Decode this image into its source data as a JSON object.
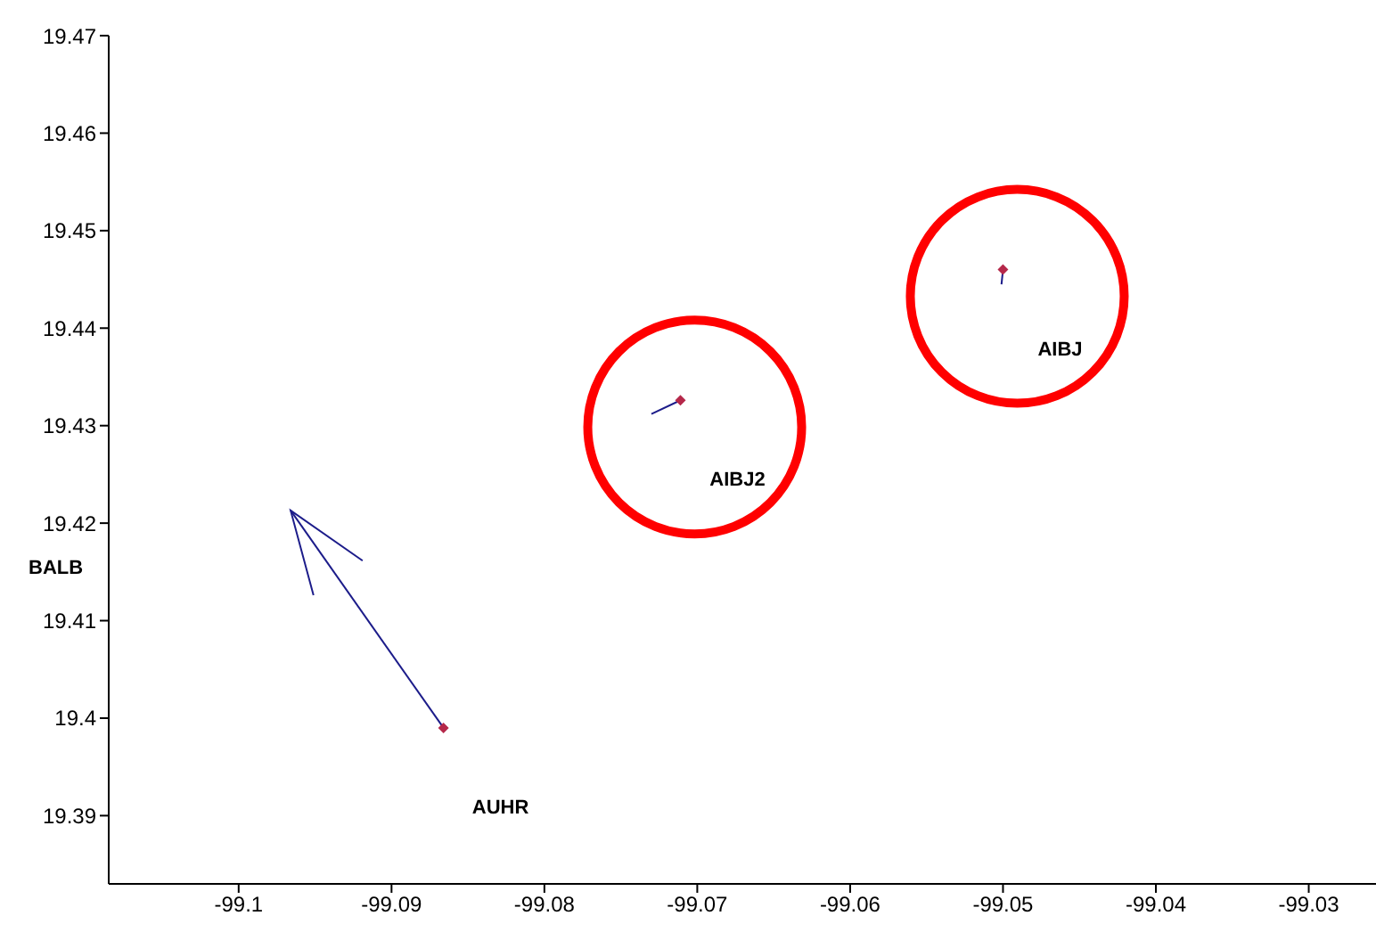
{
  "chart_data": {
    "type": "scatter",
    "xlim": [
      -99.1085,
      -99.0256
    ],
    "ylim": [
      19.383,
      19.47
    ],
    "xticks": [
      -99.1,
      -99.09,
      -99.08,
      -99.07,
      -99.06,
      -99.05,
      -99.04,
      -99.03
    ],
    "yticks": [
      19.39,
      19.4,
      19.41,
      19.42,
      19.43,
      19.44,
      19.45,
      19.46,
      19.47
    ],
    "x": [
      -99.0866,
      -99.0711,
      -99.05
    ],
    "values": [
      19.399,
      19.4326,
      19.446
    ],
    "color": "#b5284a",
    "series": [
      {
        "type": "line",
        "color": "#1c1c8a",
        "x": [
          -99.0866,
          -99.0966
        ],
        "values": [
          19.399,
          19.4213
        ]
      },
      {
        "type": "line",
        "color": "#1c1c8a",
        "x": [
          -99.0711,
          -99.073
        ],
        "values": [
          19.4326,
          19.4312
        ]
      },
      {
        "type": "line",
        "color": "#1c1c8a",
        "x": [
          -99.05,
          -99.0501
        ],
        "values": [
          19.446,
          19.4445
        ]
      }
    ],
    "annotations": [
      "AUHR",
      "AIBJ2",
      "AIBJ",
      "BALB"
    ]
  }
}
